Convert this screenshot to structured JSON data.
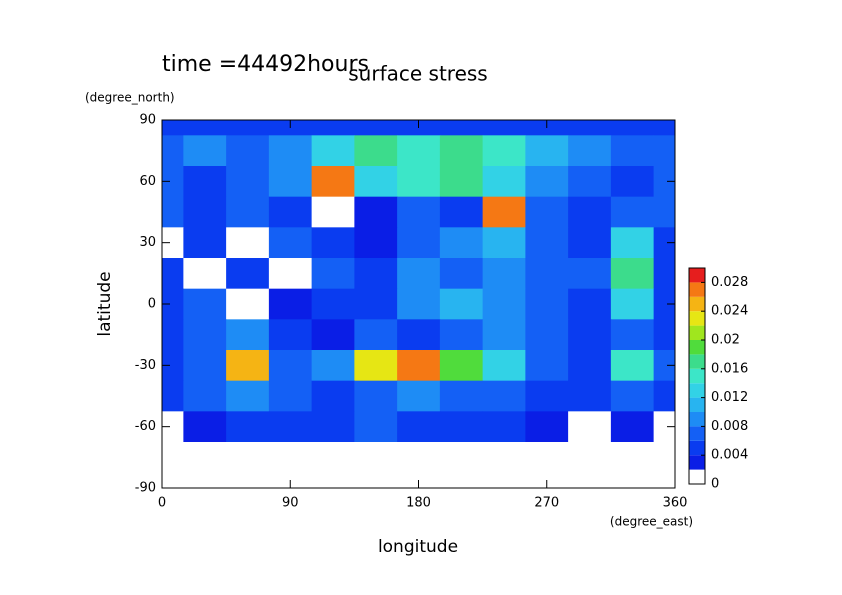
{
  "chart_data": {
    "type": "contour",
    "title": "surface stress",
    "subtitle": "time =44492hours",
    "x_label": "longitude",
    "x_unit": "(degree_east)",
    "y_label": "latitude",
    "y_unit": "(degree_north)",
    "x": [
      0,
      30,
      60,
      90,
      120,
      150,
      180,
      210,
      240,
      270,
      300,
      330,
      360
    ],
    "y": [
      90,
      75,
      60,
      45,
      30,
      15,
      0,
      -15,
      -30,
      -45,
      -60,
      -75,
      -90
    ],
    "z": [
      [
        0.004,
        0.004,
        0.004,
        0.004,
        0.004,
        0.004,
        0.004,
        0.004,
        0.004,
        0.004,
        0.004,
        0.004,
        0.004
      ],
      [
        0.006,
        0.008,
        0.006,
        0.008,
        0.012,
        0.016,
        0.014,
        0.016,
        0.014,
        0.01,
        0.008,
        0.006,
        0.006
      ],
      [
        0.006,
        0.004,
        0.006,
        0.008,
        0.026,
        0.012,
        0.014,
        0.016,
        0.012,
        0.008,
        0.006,
        0.004,
        0.006
      ],
      [
        0.006,
        0.004,
        0.006,
        0.004,
        0,
        0.002,
        0.006,
        0.004,
        0.026,
        0.006,
        0.004,
        0.006,
        0.006
      ],
      [
        0,
        0.004,
        0,
        0.006,
        0.004,
        0.002,
        0.006,
        0.008,
        0.01,
        0.006,
        0.004,
        0.012,
        0.004
      ],
      [
        0.004,
        0,
        0.004,
        0,
        0.006,
        0.004,
        0.008,
        0.006,
        0.008,
        0.006,
        0.006,
        0.016,
        0.004
      ],
      [
        0.004,
        0.006,
        0,
        0.002,
        0.004,
        0.004,
        0.008,
        0.01,
        0.008,
        0.006,
        0.004,
        0.012,
        0.004
      ],
      [
        0.004,
        0.006,
        0.008,
        0.004,
        0.002,
        0.006,
        0.004,
        0.006,
        0.008,
        0.006,
        0.004,
        0.006,
        0.004
      ],
      [
        0.004,
        0.006,
        0.024,
        0.006,
        0.008,
        0.022,
        0.026,
        0.018,
        0.012,
        0.006,
        0.004,
        0.014,
        0.006
      ],
      [
        0.004,
        0.006,
        0.008,
        0.006,
        0.004,
        0.006,
        0.008,
        0.006,
        0.006,
        0.004,
        0.004,
        0.006,
        0.004
      ],
      [
        0,
        0.002,
        0.004,
        0.004,
        0.004,
        0.006,
        0.004,
        0.004,
        0.004,
        0.002,
        0,
        0.002,
        0
      ],
      [
        0,
        0,
        0,
        0,
        0,
        0,
        0,
        0,
        0,
        0,
        0,
        0,
        0
      ],
      [
        0,
        0,
        0,
        0,
        0,
        0,
        0,
        0,
        0,
        0,
        0,
        0,
        0
      ]
    ],
    "xlim": [
      0,
      360
    ],
    "xticks": [
      0,
      90,
      180,
      270,
      360
    ],
    "ylim": [
      -90,
      90
    ],
    "yticks": [
      -90,
      -60,
      -30,
      0,
      30,
      60,
      90
    ],
    "levels": [
      0,
      0.002,
      0.004,
      0.006,
      0.008,
      0.01,
      0.012,
      0.014,
      0.016,
      0.018,
      0.02,
      0.022,
      0.024,
      0.026,
      0.028,
      0.03
    ],
    "colors": [
      "#ffffff",
      "#0a1ee6",
      "#0a3cf0",
      "#1460f5",
      "#1e8cf5",
      "#28b4f0",
      "#32d2e6",
      "#3ce6c8",
      "#3cdc8c",
      "#50dc3c",
      "#a0e61e",
      "#e6e614",
      "#f5b414",
      "#f57814",
      "#e61e1e"
    ],
    "colorbar_ticks": [
      0,
      0.004,
      0.008,
      0.012,
      0.016,
      0.02,
      0.024,
      0.028
    ]
  }
}
